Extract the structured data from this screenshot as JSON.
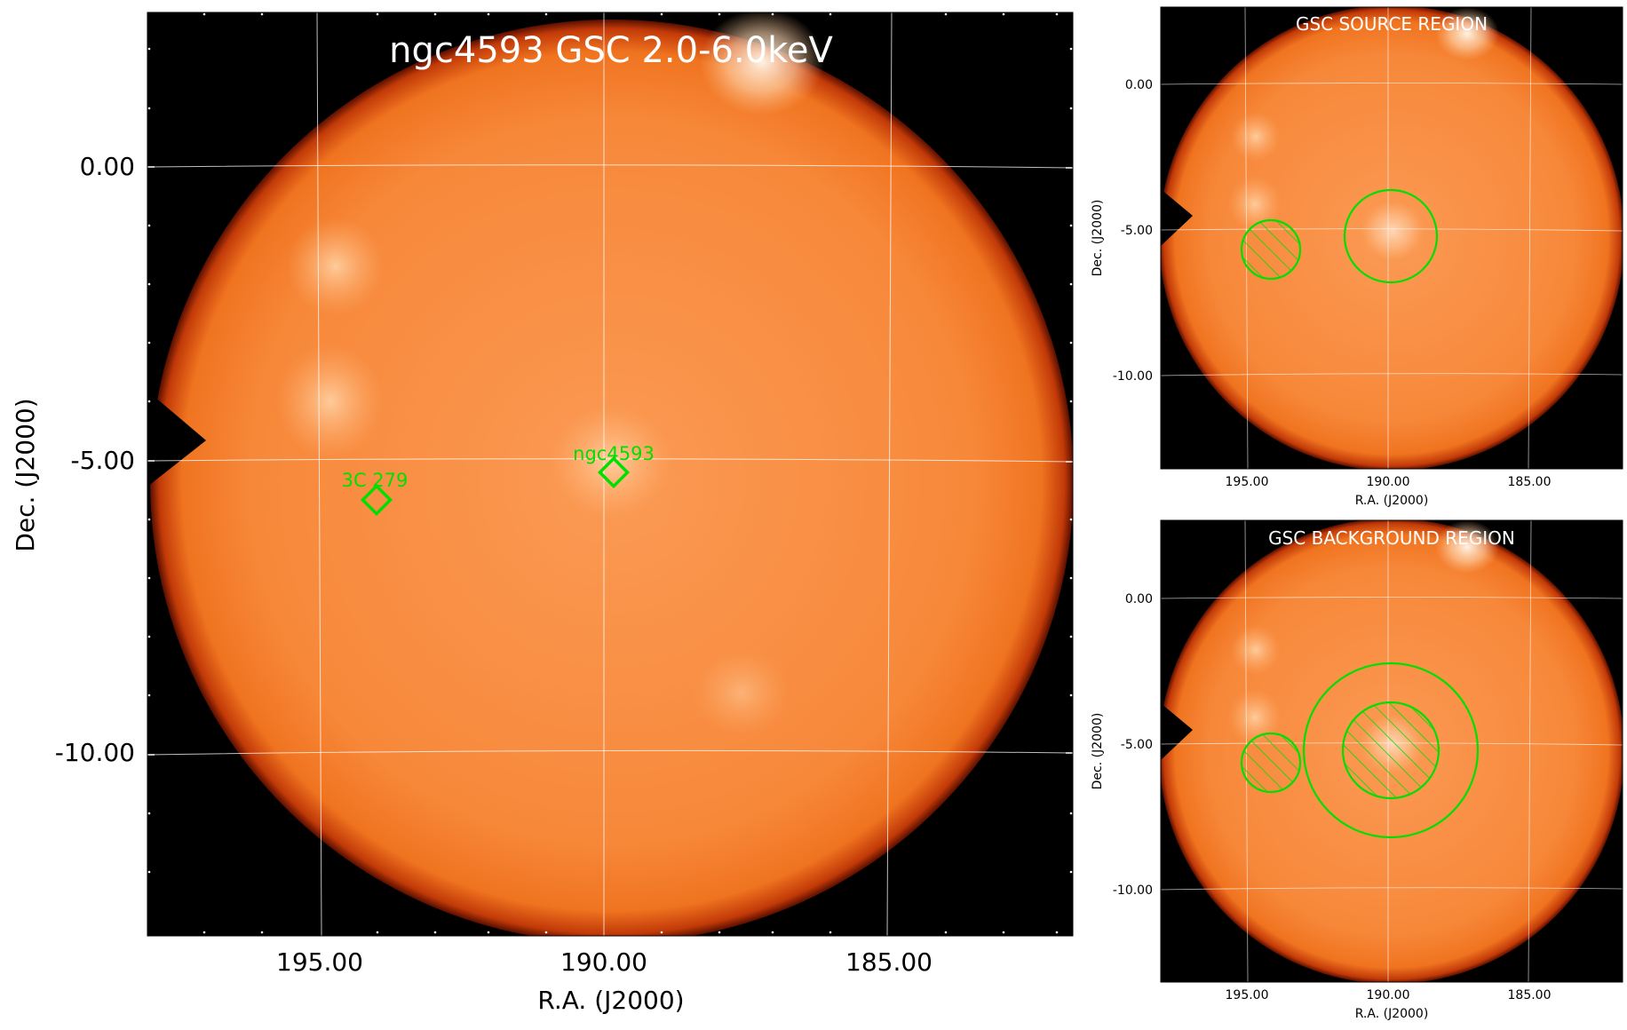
{
  "main_panel": {
    "title": "ngc4593 GSC 2.0-6.0keV",
    "xlabel": "R.A. (J2000)",
    "ylabel": "Dec. (J2000)",
    "x_ticks": [
      "195.00",
      "190.00",
      "185.00"
    ],
    "y_ticks": [
      "0.00",
      "-5.00",
      "-10.00"
    ],
    "sources": [
      {
        "name": "3C 279",
        "ra": 194.05,
        "dec": -5.79
      },
      {
        "name": "ngc4593",
        "ra": 189.91,
        "dec": -5.34
      }
    ],
    "marker_color": "#00ff00"
  },
  "source_panel": {
    "title": "GSC SOURCE REGION",
    "xlabel": "R.A. (J2000)",
    "ylabel": "Dec. (J2000)",
    "x_ticks": [
      "195.00",
      "190.00",
      "185.00"
    ],
    "y_ticks": [
      "0.00",
      "-5.00",
      "-10.00"
    ]
  },
  "background_panel": {
    "title": "GSC BACKGROUND REGION",
    "xlabel": "R.A. (J2000)",
    "ylabel": "Dec. (J2000)",
    "x_ticks": [
      "195.00",
      "190.00",
      "185.00"
    ],
    "y_ticks": [
      "0.00",
      "-5.00",
      "-10.00"
    ]
  },
  "colors": {
    "map_orange": "#f2822e",
    "map_background": "#000000",
    "region_green": "#00e000"
  }
}
